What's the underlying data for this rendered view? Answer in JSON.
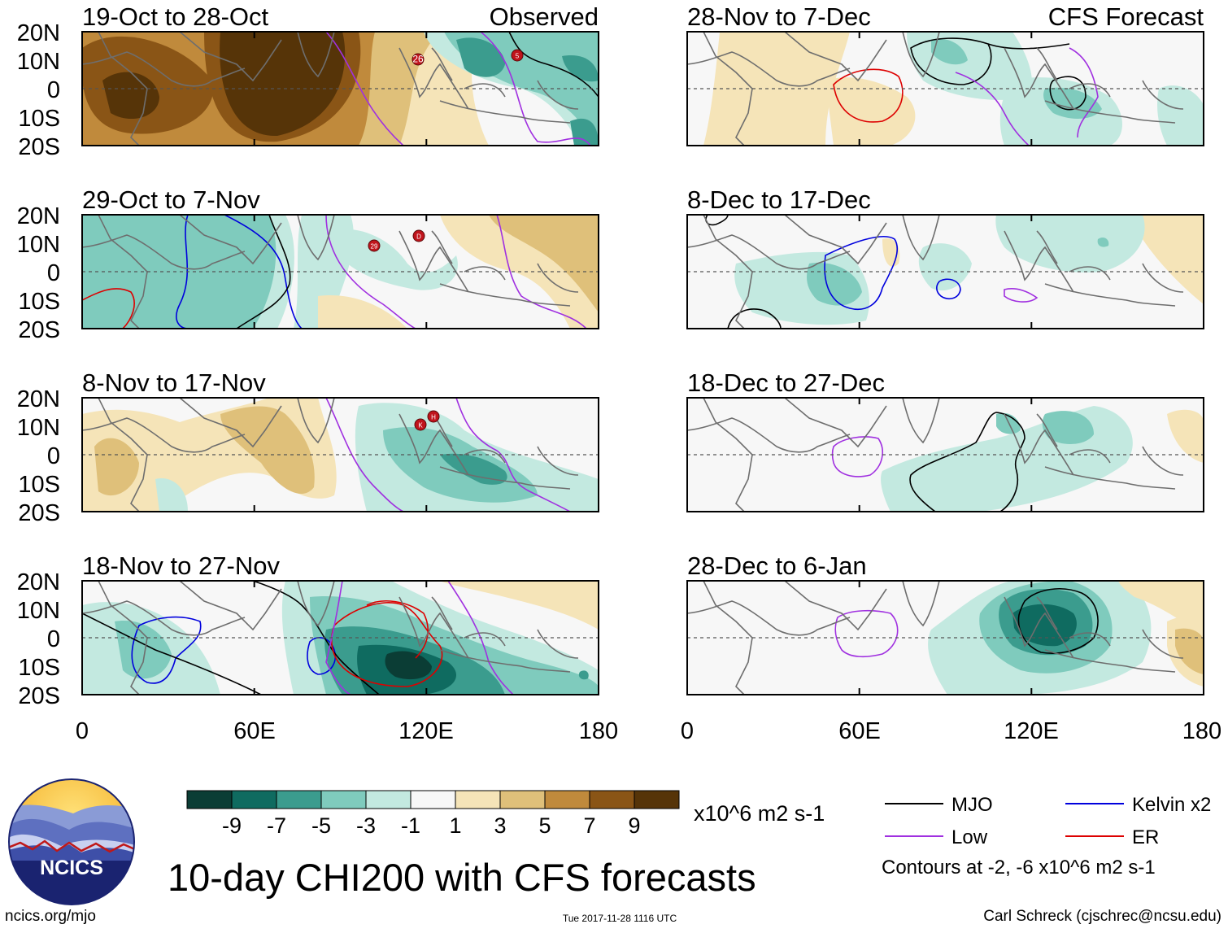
{
  "lat_labels": [
    "20N",
    "10N",
    "0",
    "10S",
    "20S"
  ],
  "lon_labels": [
    "0",
    "60E",
    "120E",
    "180"
  ],
  "left_column": {
    "corner_label": "Observed",
    "panels": [
      {
        "title": "19-Oct to 28-Oct",
        "storms": [
          "26",
          "5"
        ]
      },
      {
        "title": "29-Oct to 7-Nov",
        "storms": [
          "29",
          "D"
        ]
      },
      {
        "title": "8-Nov to 17-Nov",
        "storms": [
          "K",
          "H"
        ]
      },
      {
        "title": "18-Nov to 27-Nov",
        "storms": []
      }
    ]
  },
  "right_column": {
    "corner_label": "CFS Forecast",
    "panels": [
      {
        "title": "28-Nov to 7-Dec"
      },
      {
        "title": "8-Dec to 17-Dec"
      },
      {
        "title": "18-Dec to 27-Dec"
      },
      {
        "title": "28-Dec to 6-Jan"
      }
    ]
  },
  "colorbar": {
    "labels": [
      "-9",
      "-7",
      "-5",
      "-3",
      "-1",
      "1",
      "3",
      "5",
      "7",
      "9"
    ],
    "colors": [
      "#0b3d35",
      "#0f6b60",
      "#3b9c8e",
      "#7fcbbd",
      "#c3e9e0",
      "#f7f7f7",
      "#f5e4b8",
      "#dfc07a",
      "#c08a3c",
      "#8a5516",
      "#563408"
    ],
    "units": "x10^6 m2 s-1"
  },
  "legend": {
    "items": [
      {
        "label": "MJO",
        "color": "#000000"
      },
      {
        "label": "Kelvin x2",
        "color": "#0000dd"
      },
      {
        "label": "Low",
        "color": "#a030e0"
      },
      {
        "label": "ER",
        "color": "#dd0000"
      }
    ],
    "note": "Contours at -2, -6 x10^6 m2 s-1"
  },
  "logo_text": "NCICS",
  "main_title": "10-day CHI200 with CFS forecasts",
  "footer": {
    "url": "ncics.org/mjo",
    "timestamp": "Tue 2017-11-28 1116 UTC",
    "credit": "Carl Schreck (cjschrec@ncsu.edu)"
  }
}
